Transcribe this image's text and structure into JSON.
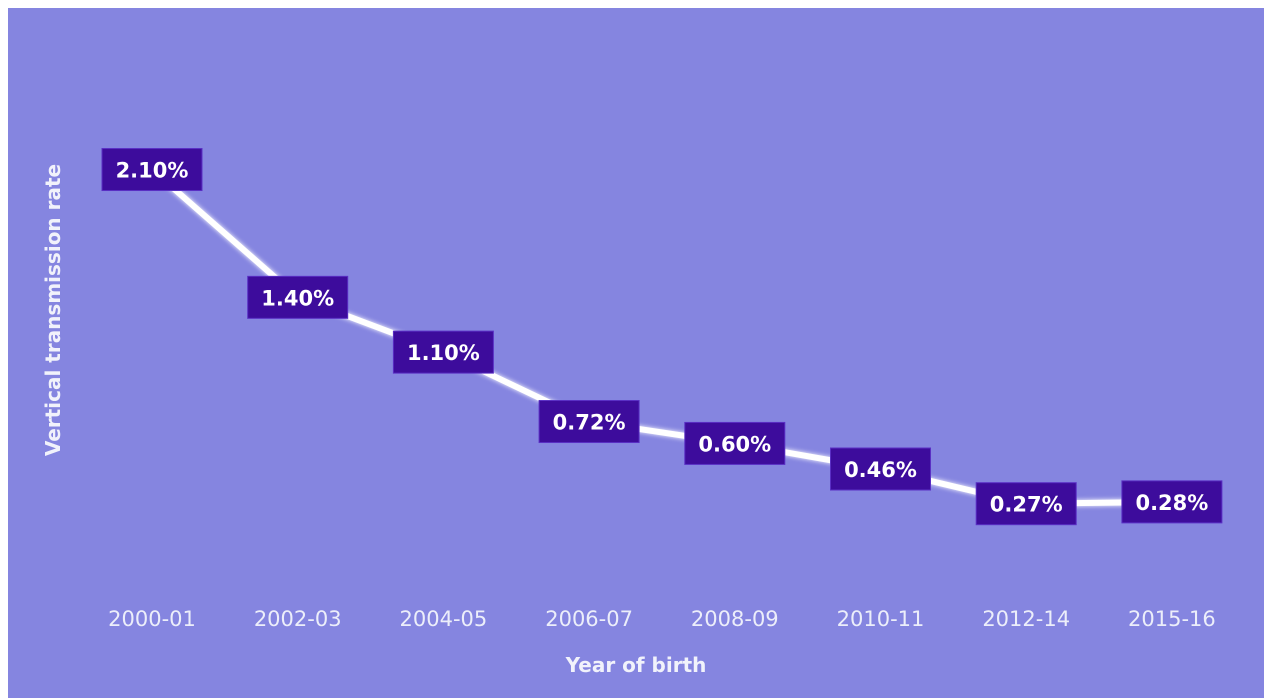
{
  "chart_data": {
    "type": "line",
    "title": "",
    "xlabel": "Year of birth",
    "ylabel": "Vertical transmission rate",
    "categories": [
      "2000-01",
      "2002-03",
      "2004-05",
      "2006-07",
      "2008-09",
      "2010-11",
      "2012-14",
      "2015-16"
    ],
    "values": [
      2.1,
      1.4,
      1.1,
      0.72,
      0.6,
      0.46,
      0.27,
      0.28
    ],
    "data_labels": [
      "2.10%",
      "1.40%",
      "1.10%",
      "0.72%",
      "0.60%",
      "0.46%",
      "0.27%",
      "0.28%"
    ],
    "ylim": [
      0,
      2.3
    ],
    "grid": false,
    "drop_lines": true,
    "colors": {
      "background": "#8585e0",
      "line": "#ffffff",
      "label_box": "#3d0c9c"
    }
  }
}
